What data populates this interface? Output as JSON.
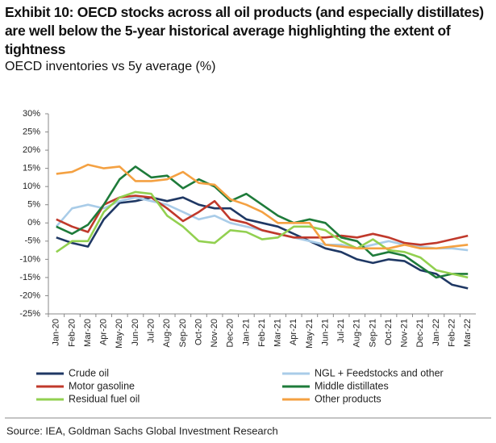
{
  "chart_data": {
    "type": "line",
    "title": "Exhibit 10: OECD stocks across all oil products (and especially distillates) are well below the 5-year historical average highlighting the extent of tightness",
    "subtitle": "OECD inventories vs 5y average (%)",
    "source": "Source: IEA, Goldman Sachs Global Investment Research",
    "categories": [
      "Jan-20",
      "Feb-20",
      "Mar-20",
      "Apr-20",
      "May-20",
      "Jun-20",
      "Jul-20",
      "Aug-20",
      "Sep-20",
      "Oct-20",
      "Nov-20",
      "Dec-20",
      "Jan-21",
      "Feb-21",
      "Mar-21",
      "Apr-21",
      "May-21",
      "Jun-21",
      "Jul-21",
      "Aug-21",
      "Sep-21",
      "Oct-21",
      "Nov-21",
      "Dec-21",
      "Jan-22",
      "Feb-22",
      "Mar-22"
    ],
    "series": [
      {
        "name": "Crude oil",
        "color": "#1f3864",
        "values": [
          -4,
          -5.5,
          -6.5,
          1,
          5.5,
          6,
          7,
          6,
          7,
          5,
          4,
          4,
          1,
          0,
          -1,
          -3,
          -5,
          -7,
          -8,
          -10,
          -11,
          -10,
          -10.5,
          -13,
          -14,
          -17,
          -18
        ]
      },
      {
        "name": "NGL + Feedstocks and other",
        "color": "#a9cce8",
        "values": [
          -1,
          4,
          5,
          4,
          6,
          7,
          6,
          5,
          3,
          1,
          2,
          0,
          -1,
          -2,
          -3,
          -4,
          -5,
          -6,
          -6,
          -7,
          -6,
          -5,
          -6,
          -6.5,
          -7,
          -7,
          -7.5
        ]
      },
      {
        "name": "Motor gasoline",
        "color": "#c0392b",
        "values": [
          1,
          -1,
          -2.5,
          5,
          7,
          7.5,
          7,
          4,
          0.5,
          3,
          6,
          1,
          0,
          -2,
          -3,
          -4,
          -4,
          -4,
          -3.5,
          -4,
          -3,
          -4,
          -5.5,
          -6,
          -5.5,
          -4.5,
          -3.5
        ]
      },
      {
        "name": "Middle distillates",
        "color": "#1e7b3a",
        "values": [
          -1,
          -3,
          -0.5,
          5,
          12,
          15.5,
          12.5,
          13,
          9.5,
          12,
          10,
          6,
          8,
          5,
          2,
          0,
          1,
          0,
          -4,
          -5,
          -9,
          -8,
          -9,
          -12,
          -15,
          -14,
          -14
        ]
      },
      {
        "name": "Residual fuel oil",
        "color": "#92d050",
        "values": [
          -8,
          -5,
          -5,
          3,
          7,
          8.5,
          8,
          2,
          -1,
          -5,
          -5.5,
          -2,
          -2.5,
          -4.5,
          -4,
          -1,
          -1,
          -2,
          -5,
          -7,
          -4.5,
          -7.5,
          -8,
          -9.5,
          -13,
          -14,
          -15
        ]
      },
      {
        "name": "Other products",
        "color": "#f4a142",
        "values": [
          13.5,
          14,
          16,
          15,
          15.5,
          11.5,
          11.5,
          12,
          14,
          11,
          10.5,
          6.5,
          5,
          3,
          0,
          0,
          0,
          -6,
          -6.5,
          -7,
          -7,
          -7,
          -6,
          -7,
          -7,
          -6.5,
          -6
        ]
      }
    ],
    "ylim": [
      -25,
      30
    ],
    "yticks": [
      {
        "value": -25,
        "label": "-25%"
      },
      {
        "value": -20,
        "label": "-20%"
      },
      {
        "value": -15,
        "label": "-15%"
      },
      {
        "value": -10,
        "label": "-10%"
      },
      {
        "value": -5,
        "label": "-5%"
      },
      {
        "value": 0,
        "label": "0%"
      },
      {
        "value": 5,
        "label": "5%"
      },
      {
        "value": 10,
        "label": "10%"
      },
      {
        "value": 15,
        "label": "15%"
      },
      {
        "value": 20,
        "label": "20%"
      },
      {
        "value": 25,
        "label": "25%"
      },
      {
        "value": 30,
        "label": "30%"
      }
    ],
    "grid": false
  }
}
